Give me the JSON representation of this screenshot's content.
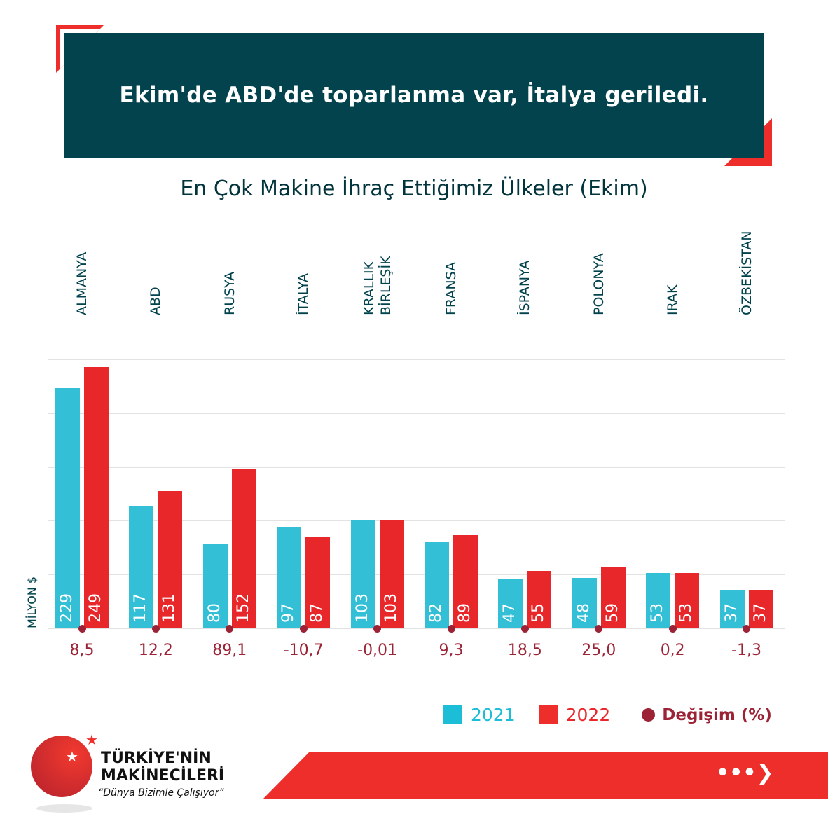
{
  "header": {
    "title": "Ekim'de ABD'de toparlanma var, İtalya geriledi."
  },
  "chart_data": {
    "type": "bar",
    "title": "En Çok Makine İhraç Ettiğimiz Ülkeler (Ekim)",
    "ylabel": "MİLYON $",
    "ylim": [
      0,
      256
    ],
    "grid": true,
    "categories": [
      "ALMANYA",
      "ABD",
      "RUSYA",
      "İTALYA",
      "BİRLEŞİK KRALLIK",
      "FRANSA",
      "İSPANYA",
      "POLONYA",
      "IRAK",
      "ÖZBEKİSTAN"
    ],
    "category_lines": [
      [
        "ALMANYA"
      ],
      [
        "ABD"
      ],
      [
        "RUSYA"
      ],
      [
        "İTALYA"
      ],
      [
        "BİRLEŞİK",
        "KRALLIK"
      ],
      [
        "FRANSA"
      ],
      [
        "İSPANYA"
      ],
      [
        "POLONYA"
      ],
      [
        "IRAK"
      ],
      [
        "ÖZBEKİSTAN"
      ]
    ],
    "series": [
      {
        "name": "2021",
        "color": "#33bfd6",
        "values": [
          229,
          117,
          80,
          97,
          103,
          82,
          47,
          48,
          53,
          37
        ]
      },
      {
        "name": "2022",
        "color": "#e8272b",
        "values": [
          249,
          131,
          152,
          87,
          103,
          89,
          55,
          59,
          53,
          37
        ]
      }
    ],
    "change_pct": {
      "name": "Değişim (%)",
      "color": "#9b2335",
      "labels": [
        "8,5",
        "12,2",
        "89,1",
        "-10,7",
        "-0,01",
        "9,3",
        "18,5",
        "25,0",
        "0,2",
        "-1,3"
      ]
    },
    "legend_placement": "bottom-right"
  },
  "logo": {
    "line1": "TÜRKİYE'NİN",
    "line2": "MAKİNECİLERİ",
    "tagline": "“Dünya Bizimle Çalışıyor”"
  },
  "colors": {
    "header_bg": "#02434d",
    "accent_red": "#ee2e2a"
  }
}
